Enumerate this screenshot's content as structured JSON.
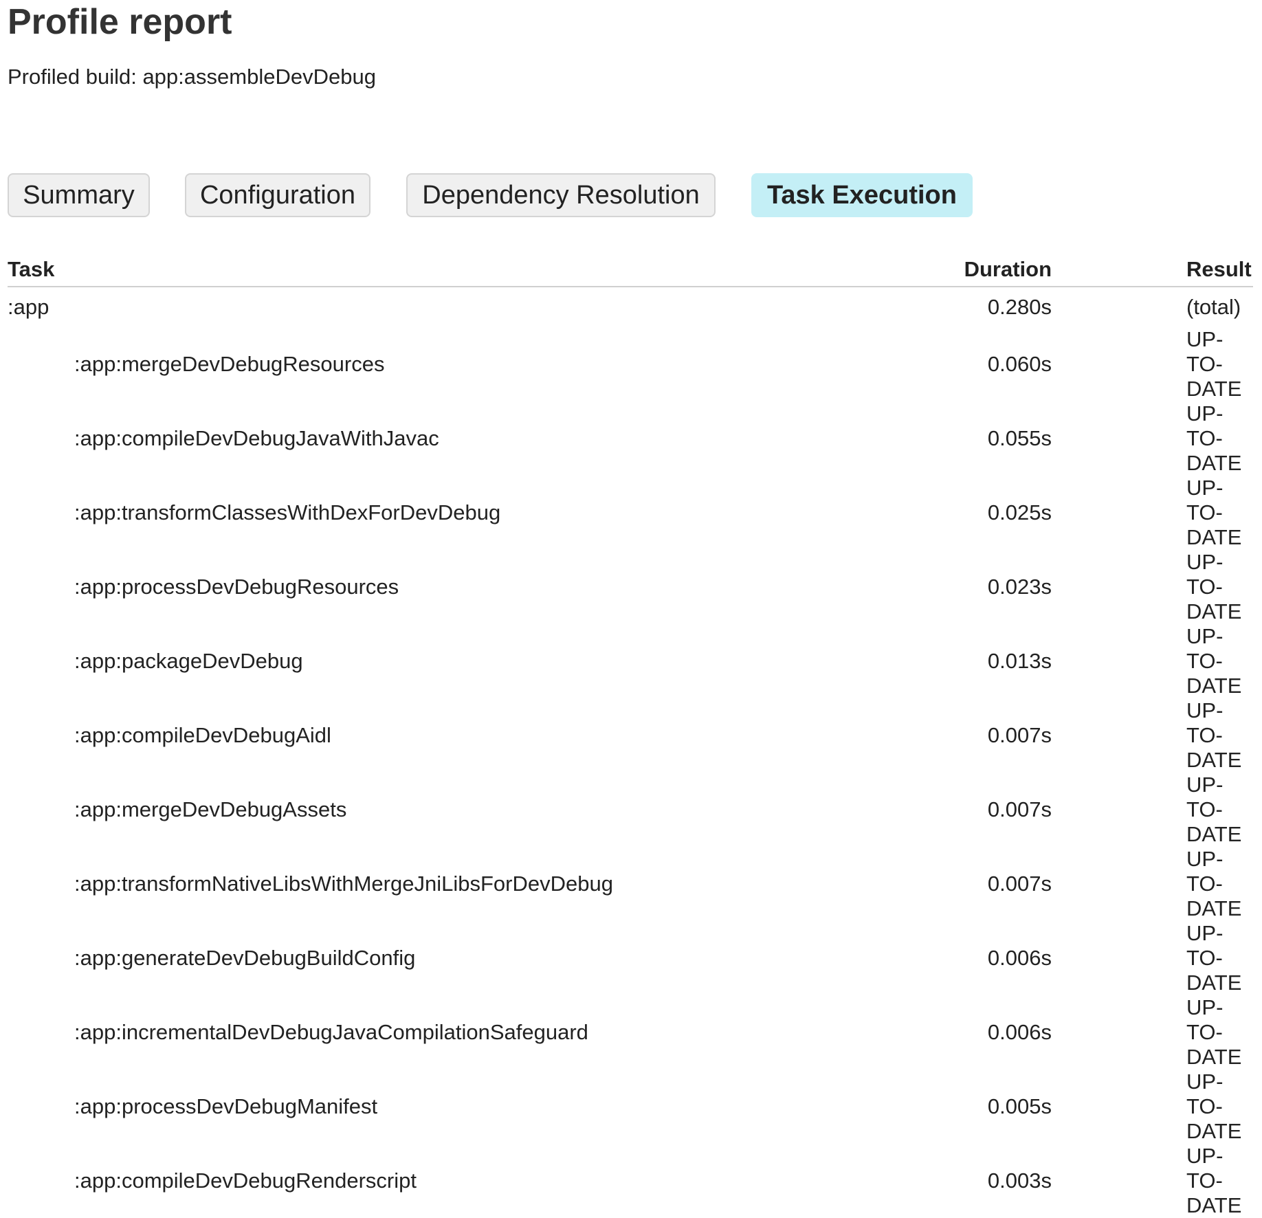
{
  "title": "Profile report",
  "subtitle": "Profiled build: app:assembleDevDebug",
  "tabs": [
    {
      "label": "Summary",
      "active": false
    },
    {
      "label": "Configuration",
      "active": false
    },
    {
      "label": "Dependency Resolution",
      "active": false
    },
    {
      "label": "Task Execution",
      "active": true
    }
  ],
  "accent_color": "#c4eff6",
  "table": {
    "headers": [
      "Task",
      "Duration",
      "Result"
    ],
    "rows": [
      {
        "task": ":app",
        "duration": "0.280s",
        "result": "(total)",
        "indent": false
      },
      {
        "task": ":app:mergeDevDebugResources",
        "duration": "0.060s",
        "result": "UP-TO-DATE",
        "indent": true
      },
      {
        "task": ":app:compileDevDebugJavaWithJavac",
        "duration": "0.055s",
        "result": "UP-TO-DATE",
        "indent": true
      },
      {
        "task": ":app:transformClassesWithDexForDevDebug",
        "duration": "0.025s",
        "result": "UP-TO-DATE",
        "indent": true
      },
      {
        "task": ":app:processDevDebugResources",
        "duration": "0.023s",
        "result": "UP-TO-DATE",
        "indent": true
      },
      {
        "task": ":app:packageDevDebug",
        "duration": "0.013s",
        "result": "UP-TO-DATE",
        "indent": true
      },
      {
        "task": ":app:compileDevDebugAidl",
        "duration": "0.007s",
        "result": "UP-TO-DATE",
        "indent": true
      },
      {
        "task": ":app:mergeDevDebugAssets",
        "duration": "0.007s",
        "result": "UP-TO-DATE",
        "indent": true
      },
      {
        "task": ":app:transformNativeLibsWithMergeJniLibsForDevDebug",
        "duration": "0.007s",
        "result": "UP-TO-DATE",
        "indent": true
      },
      {
        "task": ":app:generateDevDebugBuildConfig",
        "duration": "0.006s",
        "result": "UP-TO-DATE",
        "indent": true
      },
      {
        "task": ":app:incrementalDevDebugJavaCompilationSafeguard",
        "duration": "0.006s",
        "result": "UP-TO-DATE",
        "indent": true
      },
      {
        "task": ":app:processDevDebugManifest",
        "duration": "0.005s",
        "result": "UP-TO-DATE",
        "indent": true
      },
      {
        "task": ":app:compileDevDebugRenderscript",
        "duration": "0.003s",
        "result": "UP-TO-DATE",
        "indent": true
      }
    ]
  }
}
